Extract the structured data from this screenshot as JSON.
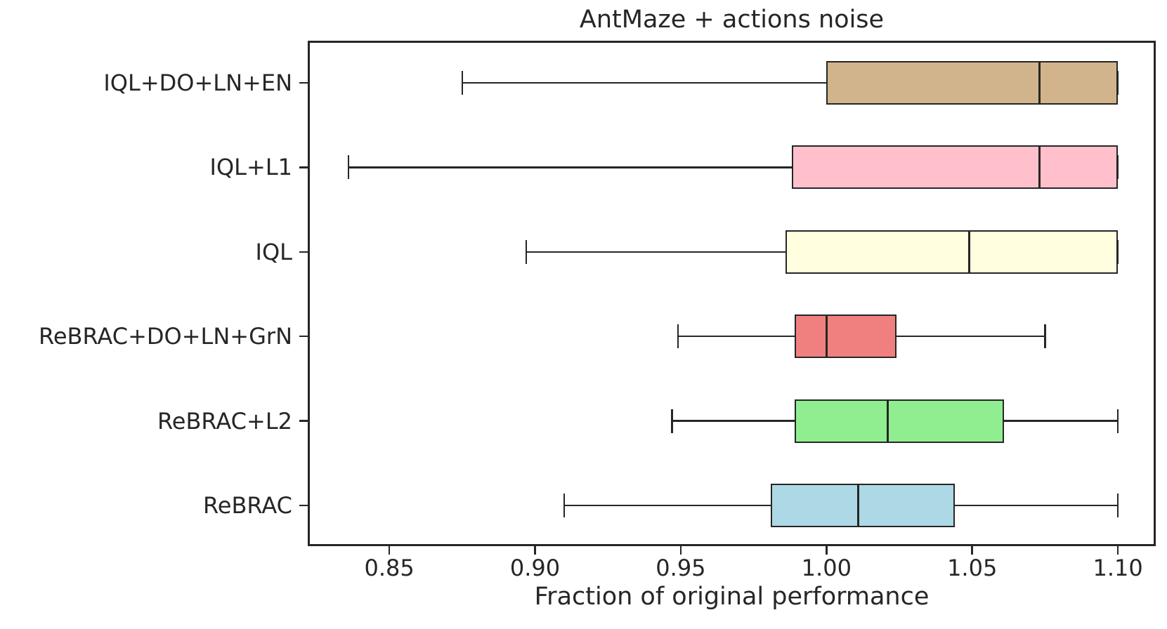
{
  "chart_data": {
    "type": "boxplot",
    "orientation": "horizontal",
    "title": "AntMaze + actions noise",
    "xlabel": "Fraction of original performance",
    "ylabel": "",
    "xlim": [
      0.822,
      1.113
    ],
    "xticks": [
      0.85,
      0.9,
      0.95,
      1.0,
      1.05,
      1.1
    ],
    "xtick_labels": [
      "0.85",
      "0.90",
      "0.95",
      "1.00",
      "1.05",
      "1.10"
    ],
    "grid": false,
    "legend": "none",
    "axis_color": "#262626",
    "series": [
      {
        "label": "IQL+DO+LN+EN",
        "color": "#D2B48C",
        "whisker_low": 0.875,
        "q1": 1.0,
        "median": 1.073,
        "q3": 1.1,
        "whisker_high": 1.1
      },
      {
        "label": "IQL+L1",
        "color": "#FFC0CB",
        "whisker_low": 0.836,
        "q1": 0.988,
        "median": 1.073,
        "q3": 1.1,
        "whisker_high": 1.1
      },
      {
        "label": "IQL",
        "color": "#FFFFE0",
        "whisker_low": 0.897,
        "q1": 0.986,
        "median": 1.049,
        "q3": 1.1,
        "whisker_high": 1.1
      },
      {
        "label": "ReBRAC+DO+LN+GrN",
        "color": "#F08080",
        "whisker_low": 0.949,
        "q1": 0.989,
        "median": 1.0,
        "q3": 1.024,
        "whisker_high": 1.075
      },
      {
        "label": "ReBRAC+L2",
        "color": "#90EE90",
        "whisker_low": 0.947,
        "q1": 0.989,
        "median": 1.021,
        "q3": 1.061,
        "whisker_high": 1.1
      },
      {
        "label": "ReBRAC",
        "color": "#ADD8E6",
        "whisker_low": 0.91,
        "q1": 0.981,
        "median": 1.011,
        "q3": 1.044,
        "whisker_high": 1.1
      }
    ]
  }
}
